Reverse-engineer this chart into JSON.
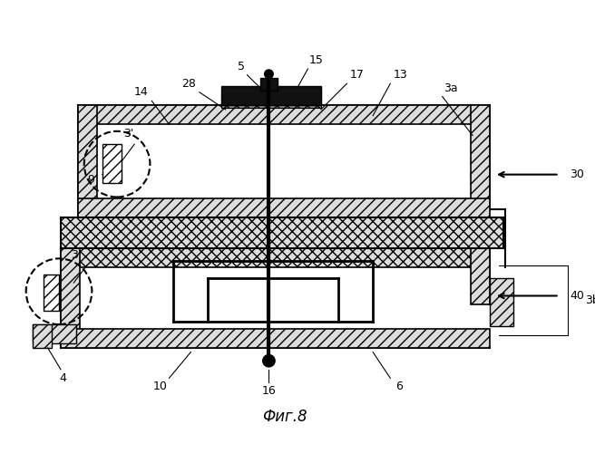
{
  "title": "Фиг.8",
  "background_color": "#ffffff",
  "fig_width": 6.56,
  "fig_height": 5.0,
  "dpi": 100
}
